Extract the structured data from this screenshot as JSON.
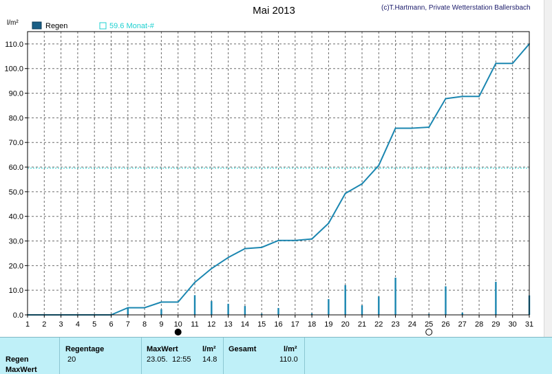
{
  "header": {
    "title": "Mai 2013",
    "copyright": "(c)T.Hartmann, Private Wetterstation Ballersbach",
    "y_unit": "l/m²"
  },
  "legend": {
    "series_label": "Regen",
    "reference_label": "59.6 Monat-#"
  },
  "colors": {
    "line": "#1a86b0",
    "bars": "#1a86b0",
    "reference": "#25d0d0",
    "grid": "#6a6a6a",
    "panel_bg": "#bff0f8"
  },
  "chart_data": {
    "type": "line",
    "title": "Mai 2013",
    "ylabel": "l/m²",
    "xlabel": "",
    "x_ticks": [
      1,
      2,
      3,
      4,
      5,
      6,
      7,
      8,
      9,
      10,
      11,
      12,
      13,
      14,
      15,
      16,
      17,
      18,
      19,
      20,
      21,
      22,
      23,
      24,
      25,
      26,
      27,
      28,
      29,
      30,
      31
    ],
    "y_ticks": [
      "0.0",
      "10.0",
      "20.0",
      "30.0",
      "40.0",
      "50.0",
      "60.0",
      "70.0",
      "80.0",
      "90.0",
      "100.0",
      "110.0"
    ],
    "xlim": [
      1,
      31
    ],
    "ylim": [
      0,
      115
    ],
    "grid": true,
    "legend_position": "top-left",
    "series": [
      {
        "name": "Regen",
        "type": "line",
        "x": [
          1,
          2,
          3,
          4,
          5,
          6,
          7,
          8,
          9,
          10,
          11,
          12,
          13,
          14,
          15,
          16,
          17,
          18,
          19,
          20,
          21,
          22,
          23,
          24,
          25,
          26,
          27,
          28,
          29,
          30,
          31
        ],
        "values": [
          0,
          0,
          0,
          0,
          0,
          0,
          2.9,
          2.9,
          5.2,
          5.2,
          13.2,
          18.8,
          23.3,
          26.9,
          27.4,
          30.2,
          30.2,
          30.8,
          37.2,
          49.3,
          53.2,
          60.7,
          75.8,
          75.8,
          76.2,
          87.8,
          88.7,
          88.7,
          102.1,
          102.1,
          110.0
        ]
      },
      {
        "name": "Regen",
        "type": "bar",
        "x": [
          7,
          9,
          11,
          12,
          13,
          14,
          15,
          16,
          18,
          19,
          20,
          21,
          22,
          23,
          25,
          26,
          27,
          29,
          31
        ],
        "values": [
          2.9,
          2.3,
          8.0,
          5.6,
          4.5,
          3.6,
          0.5,
          2.8,
          0.6,
          6.4,
          12.1,
          3.9,
          7.5,
          15.1,
          0.4,
          11.6,
          0.9,
          13.4,
          7.9
        ]
      },
      {
        "name": "59.6 Monat-#",
        "type": "reference",
        "values": [
          59.6
        ]
      }
    ],
    "markers": [
      {
        "day": 10,
        "symbol": "full-moon-marker"
      },
      {
        "day": 25,
        "symbol": "new-moon-marker"
      }
    ]
  },
  "summary": {
    "row_labels": [
      "Regen",
      "MaxWert"
    ],
    "regentage_label": "Regentage",
    "regentage_value": "20",
    "maxwert_label": "MaxWert",
    "maxwert_unit": "l/m²",
    "maxwert_date": "23.05.",
    "maxwert_time": "12:55",
    "maxwert_value": "14.8",
    "gesamt_label": "Gesamt",
    "gesamt_unit": "l/m²",
    "gesamt_value": "110.0"
  }
}
